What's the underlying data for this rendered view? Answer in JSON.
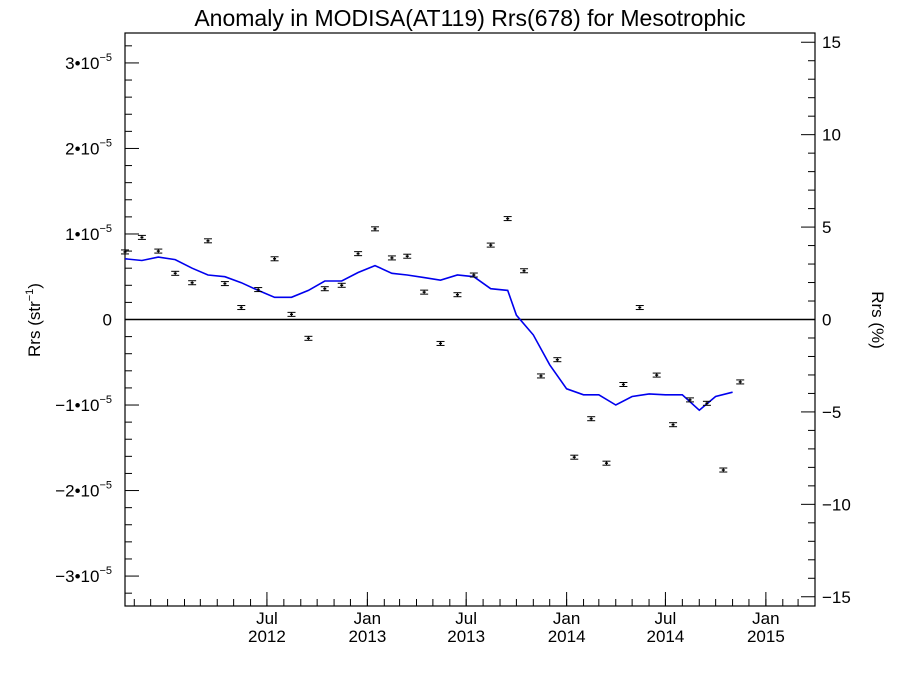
{
  "chart_data": {
    "type": "line",
    "title": "Anomaly in MODISA(AT119) Rrs(678) for Mesotrophic",
    "left_axis": {
      "label_base": "Rrs (str",
      "label_exp": "−1",
      "label_end": ")",
      "range": [
        -3.35e-05,
        3.35e-05
      ],
      "ticks": [
        {
          "value": 3e-05,
          "mant": "3•10",
          "exp": "−5"
        },
        {
          "value": 2e-05,
          "mant": "2•10",
          "exp": "−5"
        },
        {
          "value": 1e-05,
          "mant": "1•10",
          "exp": "−5"
        },
        {
          "value": 0,
          "mant": "0",
          "exp": ""
        },
        {
          "value": -1e-05,
          "mant": "−1•10",
          "exp": "−5"
        },
        {
          "value": -2e-05,
          "mant": "−2•10",
          "exp": "−5"
        },
        {
          "value": -3e-05,
          "mant": "−3•10",
          "exp": "−5"
        }
      ]
    },
    "right_axis": {
      "label": "Rrs (%)",
      "range": [
        -15.5,
        15.5
      ],
      "ticks": [
        {
          "value": 15,
          "label": "15"
        },
        {
          "value": 10,
          "label": "10"
        },
        {
          "value": 5,
          "label": "5"
        },
        {
          "value": 0,
          "label": "0"
        },
        {
          "value": -5,
          "label": "−5"
        },
        {
          "value": -10,
          "label": "−10"
        },
        {
          "value": -15,
          "label": "−15"
        }
      ]
    },
    "x_axis": {
      "range": [
        "2011-10-15",
        "2015-04-01"
      ],
      "ticks": [
        {
          "date": "2012-07-01",
          "month": "Jul",
          "year": "2012"
        },
        {
          "date": "2013-01-01",
          "month": "Jan",
          "year": "2013"
        },
        {
          "date": "2013-07-01",
          "month": "Jul",
          "year": "2013"
        },
        {
          "date": "2014-01-01",
          "month": "Jan",
          "year": "2014"
        },
        {
          "date": "2014-07-01",
          "month": "Jul",
          "year": "2014"
        },
        {
          "date": "2015-01-01",
          "month": "Jan",
          "year": "2015"
        }
      ]
    },
    "zero_line": 0,
    "points": [
      {
        "date": "2011-10-15",
        "value": 7.9e-06
      },
      {
        "date": "2011-11-15",
        "value": 9.6e-06
      },
      {
        "date": "2011-12-15",
        "value": 8e-06
      },
      {
        "date": "2012-01-15",
        "value": 5.4e-06
      },
      {
        "date": "2012-02-15",
        "value": 4.3e-06
      },
      {
        "date": "2012-03-15",
        "value": 9.2e-06
      },
      {
        "date": "2012-04-15",
        "value": 4.2e-06
      },
      {
        "date": "2012-05-15",
        "value": 1.4e-06
      },
      {
        "date": "2012-06-15",
        "value": 3.5e-06
      },
      {
        "date": "2012-07-15",
        "value": 7.1e-06
      },
      {
        "date": "2012-08-15",
        "value": 6e-07
      },
      {
        "date": "2012-09-15",
        "value": -2.2e-06
      },
      {
        "date": "2012-10-15",
        "value": 3.6e-06
      },
      {
        "date": "2012-11-15",
        "value": 4e-06
      },
      {
        "date": "2012-12-15",
        "value": 7.7e-06
      },
      {
        "date": "2013-01-15",
        "value": 1.06e-05
      },
      {
        "date": "2013-02-15",
        "value": 7.2e-06
      },
      {
        "date": "2013-03-15",
        "value": 7.4e-06
      },
      {
        "date": "2013-04-15",
        "value": 3.2e-06
      },
      {
        "date": "2013-05-15",
        "value": -2.8e-06
      },
      {
        "date": "2013-06-15",
        "value": 2.9e-06
      },
      {
        "date": "2013-07-15",
        "value": 5.2e-06
      },
      {
        "date": "2013-08-15",
        "value": 8.7e-06
      },
      {
        "date": "2013-09-15",
        "value": 1.18e-05
      },
      {
        "date": "2013-10-15",
        "value": 5.7e-06
      },
      {
        "date": "2013-11-15",
        "value": -6.6e-06
      },
      {
        "date": "2013-12-15",
        "value": -4.7e-06
      },
      {
        "date": "2014-01-15",
        "value": -1.61e-05
      },
      {
        "date": "2014-02-15",
        "value": -1.16e-05
      },
      {
        "date": "2014-03-15",
        "value": -1.68e-05
      },
      {
        "date": "2014-04-15",
        "value": -7.6e-06
      },
      {
        "date": "2014-05-15",
        "value": 1.4e-06
      },
      {
        "date": "2014-06-15",
        "value": -6.5e-06
      },
      {
        "date": "2014-07-15",
        "value": -1.23e-05
      },
      {
        "date": "2014-08-15",
        "value": -9.4e-06
      },
      {
        "date": "2014-09-15",
        "value": -9.8e-06
      },
      {
        "date": "2014-10-15",
        "value": -1.76e-05
      },
      {
        "date": "2014-11-15",
        "value": -7.3e-06
      }
    ],
    "line_series": {
      "color": "#0000ee",
      "values": [
        {
          "date": "2011-10-15",
          "value": 7.1e-06
        },
        {
          "date": "2011-11-15",
          "value": 6.9e-06
        },
        {
          "date": "2011-12-15",
          "value": 7.3e-06
        },
        {
          "date": "2012-01-15",
          "value": 7e-06
        },
        {
          "date": "2012-02-15",
          "value": 6e-06
        },
        {
          "date": "2012-03-15",
          "value": 5.2e-06
        },
        {
          "date": "2012-04-15",
          "value": 5e-06
        },
        {
          "date": "2012-05-15",
          "value": 4.3e-06
        },
        {
          "date": "2012-06-15",
          "value": 3.4e-06
        },
        {
          "date": "2012-07-15",
          "value": 2.6e-06
        },
        {
          "date": "2012-08-15",
          "value": 2.6e-06
        },
        {
          "date": "2012-09-15",
          "value": 3.4e-06
        },
        {
          "date": "2012-10-15",
          "value": 4.5e-06
        },
        {
          "date": "2012-11-15",
          "value": 4.5e-06
        },
        {
          "date": "2012-12-15",
          "value": 5.5e-06
        },
        {
          "date": "2013-01-15",
          "value": 6.3e-06
        },
        {
          "date": "2013-02-15",
          "value": 5.4e-06
        },
        {
          "date": "2013-03-15",
          "value": 5.2e-06
        },
        {
          "date": "2013-04-15",
          "value": 4.9e-06
        },
        {
          "date": "2013-05-15",
          "value": 4.6e-06
        },
        {
          "date": "2013-06-15",
          "value": 5.2e-06
        },
        {
          "date": "2013-07-15",
          "value": 5e-06
        },
        {
          "date": "2013-08-15",
          "value": 3.6e-06
        },
        {
          "date": "2013-09-15",
          "value": 3.4e-06
        },
        {
          "date": "2013-10-01",
          "value": 5e-07
        },
        {
          "date": "2013-11-01",
          "value": -1.8e-06
        },
        {
          "date": "2013-12-01",
          "value": -5.3e-06
        },
        {
          "date": "2014-01-01",
          "value": -8.1e-06
        },
        {
          "date": "2014-02-01",
          "value": -8.8e-06
        },
        {
          "date": "2014-03-01",
          "value": -8.8e-06
        },
        {
          "date": "2014-04-01",
          "value": -1e-05
        },
        {
          "date": "2014-05-01",
          "value": -9e-06
        },
        {
          "date": "2014-06-01",
          "value": -8.7e-06
        },
        {
          "date": "2014-07-01",
          "value": -8.8e-06
        },
        {
          "date": "2014-08-01",
          "value": -8.8e-06
        },
        {
          "date": "2014-09-01",
          "value": -1.06e-05
        },
        {
          "date": "2014-10-01",
          "value": -9e-06
        },
        {
          "date": "2014-11-01",
          "value": -8.5e-06
        }
      ]
    },
    "grid": false,
    "legend": "none"
  }
}
